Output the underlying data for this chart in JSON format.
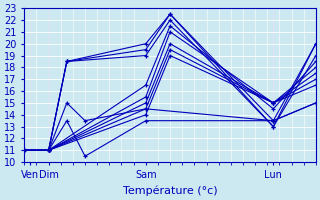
{
  "xlabel": "Température (°c)",
  "xlim": [
    0,
    96
  ],
  "ylim": [
    10,
    23
  ],
  "yticks": [
    10,
    11,
    12,
    13,
    14,
    15,
    16,
    17,
    18,
    19,
    20,
    21,
    22,
    23
  ],
  "xtick_positions": [
    2,
    8,
    40,
    82
  ],
  "xtick_labels": [
    "Ven",
    "Dim",
    "Sam",
    "Lun"
  ],
  "bg_color": "#cce8f0",
  "grid_color": "#ffffff",
  "line_color": "#0000bb",
  "series": [
    {
      "x": [
        0,
        8,
        14,
        40,
        48,
        82,
        96
      ],
      "y": [
        11.0,
        11.0,
        18.5,
        19.5,
        22.5,
        13.0,
        20.0
      ]
    },
    {
      "x": [
        0,
        8,
        14,
        40,
        48,
        82,
        96
      ],
      "y": [
        11.0,
        11.0,
        18.5,
        19.0,
        22.0,
        13.0,
        19.0
      ]
    },
    {
      "x": [
        0,
        8,
        14,
        40,
        48,
        82,
        96
      ],
      "y": [
        11.0,
        11.0,
        18.5,
        20.0,
        22.5,
        13.5,
        20.0
      ]
    },
    {
      "x": [
        0,
        8,
        40,
        48,
        82,
        96
      ],
      "y": [
        11.0,
        11.0,
        16.5,
        21.5,
        14.5,
        18.5
      ]
    },
    {
      "x": [
        0,
        8,
        40,
        48,
        82,
        96
      ],
      "y": [
        11.0,
        11.0,
        15.5,
        21.0,
        15.0,
        18.0
      ]
    },
    {
      "x": [
        0,
        8,
        40,
        48,
        82,
        96
      ],
      "y": [
        11.0,
        11.0,
        15.0,
        20.0,
        15.0,
        17.5
      ]
    },
    {
      "x": [
        0,
        8,
        40,
        48,
        82,
        96
      ],
      "y": [
        11.0,
        11.0,
        14.5,
        19.5,
        15.0,
        17.0
      ]
    },
    {
      "x": [
        0,
        8,
        40,
        48,
        82,
        96
      ],
      "y": [
        11.0,
        11.0,
        14.0,
        19.0,
        15.0,
        16.5
      ]
    },
    {
      "x": [
        0,
        8,
        14,
        20,
        40,
        82,
        96
      ],
      "y": [
        11.0,
        11.0,
        15.0,
        13.5,
        14.5,
        13.5,
        15.0
      ]
    },
    {
      "x": [
        0,
        8,
        14,
        20,
        40,
        82,
        96
      ],
      "y": [
        11.0,
        11.0,
        13.5,
        10.5,
        13.5,
        13.5,
        15.0
      ]
    }
  ]
}
